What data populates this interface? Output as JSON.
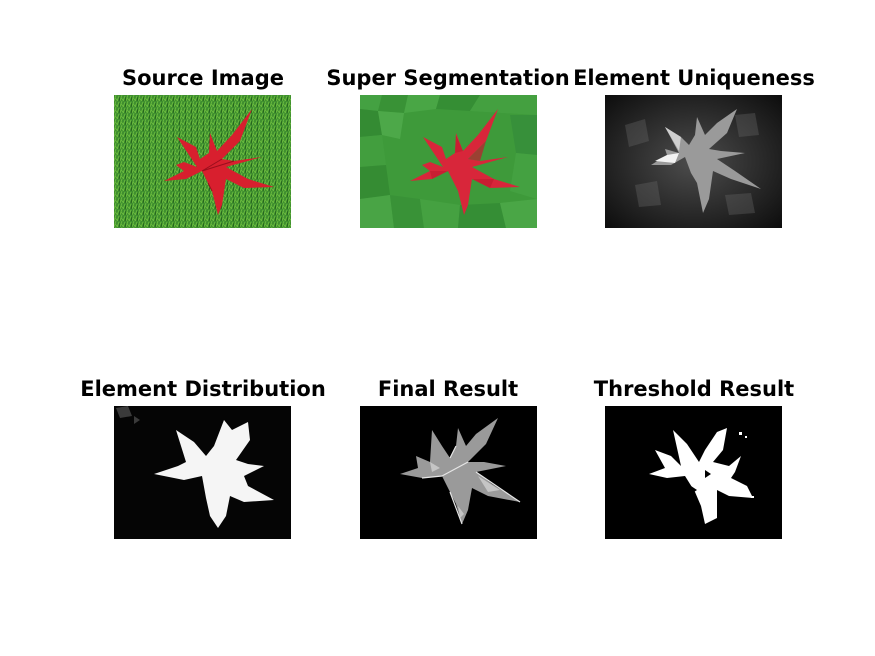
{
  "figure": {
    "panels": [
      {
        "id": "source",
        "title": "Source Image",
        "colors": {
          "bg": "#3f8f2f",
          "leaf": "#d81f2e"
        }
      },
      {
        "id": "superseg",
        "title": "Super Segmentation",
        "colors": {
          "bg": "#3e9a3a",
          "leaf": "#d8263a"
        }
      },
      {
        "id": "uniqueness",
        "title": "Element Uniqueness",
        "colors": {
          "bg": "#3a3a3a",
          "leaf": "#b5b5b5"
        }
      },
      {
        "id": "distribution",
        "title": "Element Distribution",
        "colors": {
          "bg": "#050505",
          "leaf": "#f5f5f5"
        }
      },
      {
        "id": "final",
        "title": "Final Result",
        "colors": {
          "bg": "#000000",
          "leaf": "#c8c8c8"
        }
      },
      {
        "id": "threshold",
        "title": "Threshold Result",
        "colors": {
          "bg": "#000000",
          "leaf": "#ffffff"
        }
      }
    ]
  }
}
